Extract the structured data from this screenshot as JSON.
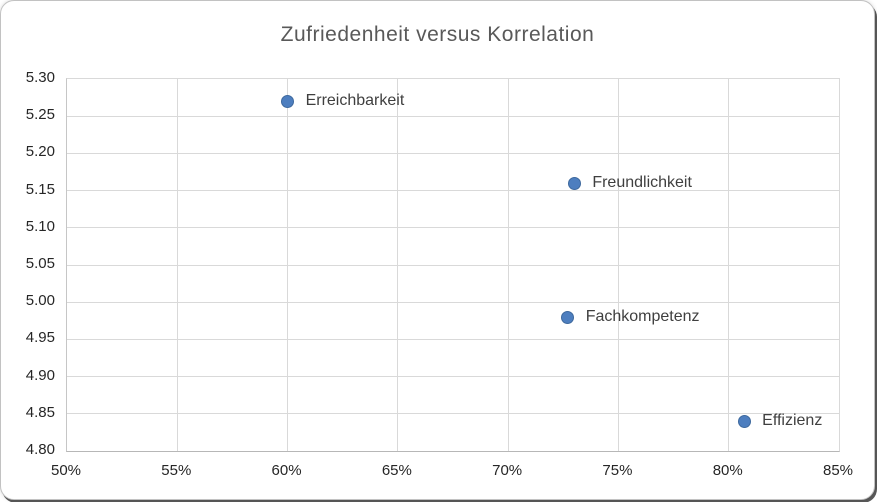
{
  "window": {
    "background_color": "#ffffff",
    "border_color": "#c2c2c2"
  },
  "chart_data": {
    "type": "scatter",
    "title": "Zufriedenheit versus Korrelation",
    "x_range": [
      50,
      85
    ],
    "y_range": [
      4.8,
      5.3
    ],
    "x_tick_labels": [
      "50%",
      "55%",
      "60%",
      "65%",
      "70%",
      "75%",
      "80%",
      "85%"
    ],
    "x_tick_values": [
      50,
      55,
      60,
      65,
      70,
      75,
      80,
      85
    ],
    "y_tick_labels": [
      "4.80",
      "4.85",
      "4.90",
      "4.95",
      "5.00",
      "5.05",
      "5.10",
      "5.15",
      "5.20",
      "5.25",
      "5.30"
    ],
    "y_tick_values": [
      4.8,
      4.85,
      4.9,
      4.95,
      5.0,
      5.05,
      5.1,
      5.15,
      5.2,
      5.25,
      5.3
    ],
    "grid": true,
    "legend_position": "none",
    "points": [
      {
        "label": "Erreichbarkeit",
        "x": 60.0,
        "y": 5.27
      },
      {
        "label": "Freundlichkeit",
        "x": 73.0,
        "y": 5.16
      },
      {
        "label": "Fachkompetenz",
        "x": 72.7,
        "y": 4.98
      },
      {
        "label": "Effizienz",
        "x": 80.7,
        "y": 4.84
      }
    ]
  },
  "colors": {
    "title": "#595959",
    "tick_label": "#262626",
    "data_label": "#3f3f3f",
    "gridline": "#d9d9d9",
    "axis_line": "#b7b7b7",
    "marker_fill": "#4d7ebf",
    "marker_border": "#3e699e"
  }
}
